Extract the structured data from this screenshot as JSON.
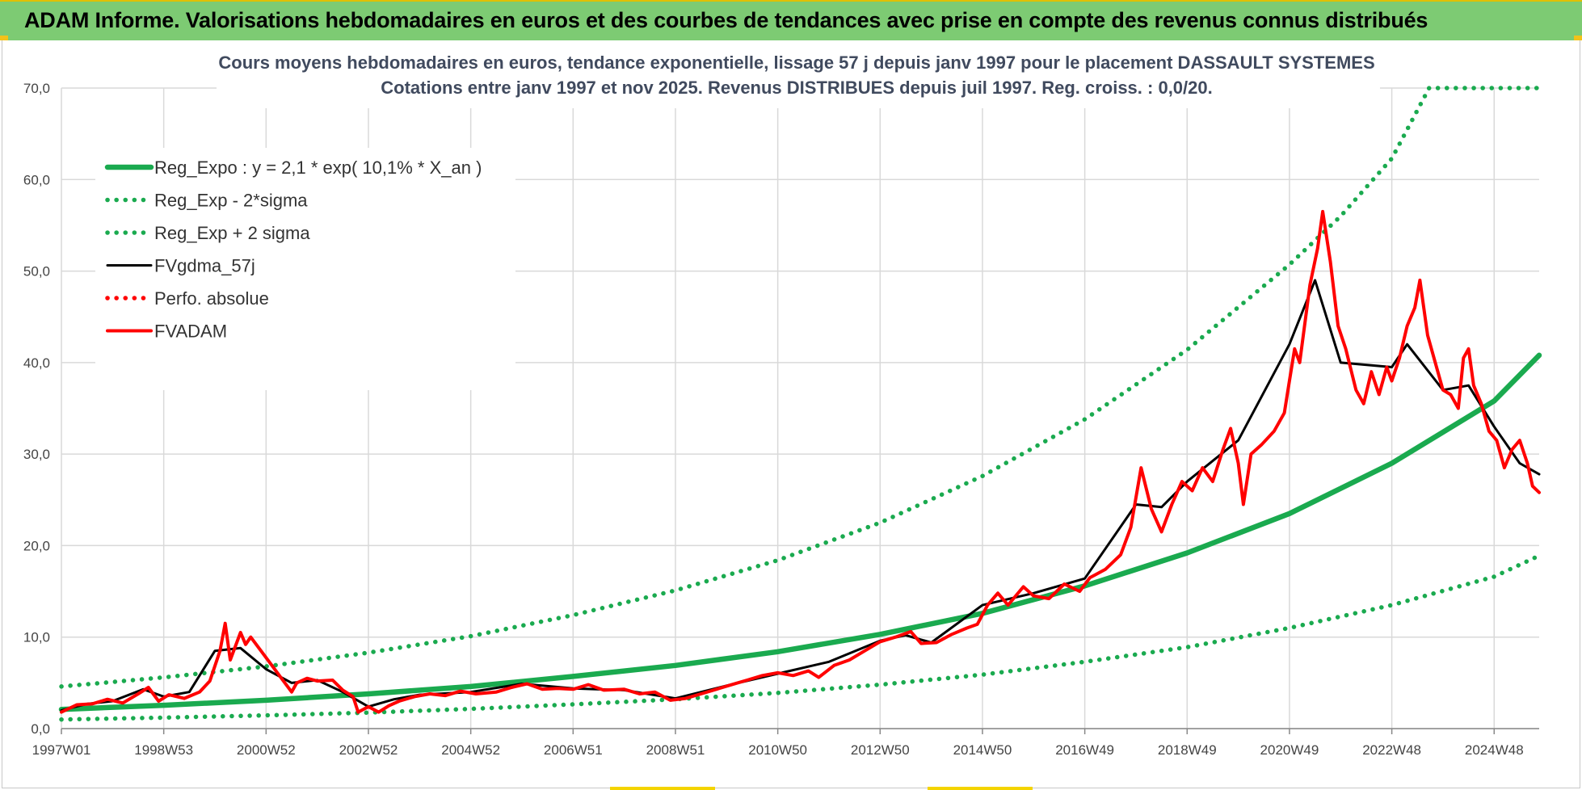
{
  "banner": {
    "title": "ADAM Informe. Valorisations hebdomadaires en euros et des courbes de tendances avec prise en compte des revenus connus distribués"
  },
  "colors": {
    "banner_bg": "#7dcb73",
    "trend_green": "#1aaa4f",
    "fv_red": "#ff0000",
    "gdma_black": "#000000",
    "grid": "#d9d9d9"
  },
  "chart_data": {
    "type": "line",
    "title": [
      "Cours moyens hebdomadaires en euros, tendance exponentielle, lissage 57 j depuis janv 1997  pour le placement DASSAULT SYSTEMES",
      "Cotations entre janv 1997 et nov 2025. Revenus DISTRIBUES depuis juil 1997. Reg. croiss. : 0,0/20."
    ],
    "xlabel": "",
    "ylabel": "",
    "x_range": [
      "1997W01",
      "2025W47"
    ],
    "x_tick_labels": [
      "1997W01",
      "1998W53",
      "2000W52",
      "2002W52",
      "2004W52",
      "2006W51",
      "2008W51",
      "2010W50",
      "2012W50",
      "2014W50",
      "2016W49",
      "2018W49",
      "2020W49",
      "2022W48",
      "2024W48"
    ],
    "x_tick_years": [
      1997.0,
      1999.0,
      2001.0,
      2003.0,
      2005.0,
      2007.0,
      2009.0,
      2011.0,
      2013.0,
      2015.0,
      2017.0,
      2019.0,
      2021.0,
      2023.0,
      2025.0
    ],
    "x_end_year": 2025.88,
    "ylim": [
      0,
      70
    ],
    "y_ticks": [
      0,
      10,
      20,
      30,
      40,
      50,
      60,
      70
    ],
    "y_tick_labels": [
      "0,0",
      "10,0",
      "20,0",
      "30,0",
      "40,0",
      "50,0",
      "60,0",
      "70,0"
    ],
    "grid": true,
    "legend_position": "top-left",
    "series": [
      {
        "name": "Reg_Expo : y = 2,1 * exp( 10,1% *  X_an )",
        "style": "solid-thick",
        "color": "#1aaa4f",
        "points": [
          [
            1997.0,
            2.1
          ],
          [
            1999.0,
            2.55
          ],
          [
            2001.0,
            3.1
          ],
          [
            2003.0,
            3.8
          ],
          [
            2005.0,
            4.6
          ],
          [
            2007.0,
            5.7
          ],
          [
            2009.0,
            6.9
          ],
          [
            2011.0,
            8.4
          ],
          [
            2013.0,
            10.3
          ],
          [
            2015.0,
            12.6
          ],
          [
            2017.0,
            15.6
          ],
          [
            2019.0,
            19.2
          ],
          [
            2021.0,
            23.5
          ],
          [
            2023.0,
            29.0
          ],
          [
            2025.0,
            35.8
          ],
          [
            2025.88,
            40.8
          ]
        ]
      },
      {
        "name": "Reg_Exp - 2*sigma",
        "style": "dotted",
        "color": "#1aaa4f",
        "points": [
          [
            1997.0,
            1.0
          ],
          [
            1999.0,
            1.2
          ],
          [
            2001.0,
            1.45
          ],
          [
            2003.0,
            1.75
          ],
          [
            2005.0,
            2.15
          ],
          [
            2007.0,
            2.65
          ],
          [
            2009.0,
            3.2
          ],
          [
            2011.0,
            3.9
          ],
          [
            2013.0,
            4.8
          ],
          [
            2015.0,
            5.9
          ],
          [
            2017.0,
            7.3
          ],
          [
            2019.0,
            8.9
          ],
          [
            2021.0,
            11.0
          ],
          [
            2023.0,
            13.5
          ],
          [
            2025.0,
            16.6
          ],
          [
            2025.88,
            18.9
          ]
        ]
      },
      {
        "name": "Reg_Exp + 2 sigma",
        "style": "dotted",
        "color": "#1aaa4f",
        "points": [
          [
            1997.0,
            4.6
          ],
          [
            1999.0,
            5.6
          ],
          [
            2001.0,
            6.8
          ],
          [
            2003.0,
            8.3
          ],
          [
            2005.0,
            10.1
          ],
          [
            2007.0,
            12.4
          ],
          [
            2009.0,
            15.1
          ],
          [
            2011.0,
            18.4
          ],
          [
            2013.0,
            22.5
          ],
          [
            2015.0,
            27.6
          ],
          [
            2017.0,
            33.8
          ],
          [
            2019.0,
            41.4
          ],
          [
            2021.0,
            50.7
          ],
          [
            2022.0,
            56.0
          ],
          [
            2023.0,
            62.3
          ],
          [
            2023.73,
            70.0
          ],
          [
            2025.88,
            70.0
          ]
        ]
      },
      {
        "name": "FVgdma_57j",
        "style": "solid",
        "color": "#000000",
        "points": [
          [
            1997.0,
            2.0
          ],
          [
            1997.5,
            2.7
          ],
          [
            1998.0,
            3.0
          ],
          [
            1998.6,
            4.3
          ],
          [
            1999.0,
            3.5
          ],
          [
            1999.5,
            4.0
          ],
          [
            2000.0,
            8.5
          ],
          [
            2000.5,
            8.8
          ],
          [
            2001.0,
            6.5
          ],
          [
            2001.5,
            5.0
          ],
          [
            2002.0,
            5.3
          ],
          [
            2002.5,
            4.0
          ],
          [
            2003.0,
            2.4
          ],
          [
            2003.5,
            3.2
          ],
          [
            2004.0,
            3.7
          ],
          [
            2005.0,
            4.0
          ],
          [
            2006.0,
            4.9
          ],
          [
            2007.0,
            4.4
          ],
          [
            2008.0,
            4.2
          ],
          [
            2009.0,
            3.3
          ],
          [
            2010.0,
            4.7
          ],
          [
            2011.0,
            6.0
          ],
          [
            2012.0,
            7.3
          ],
          [
            2013.0,
            9.6
          ],
          [
            2013.5,
            10.2
          ],
          [
            2014.0,
            9.4
          ],
          [
            2015.0,
            13.5
          ],
          [
            2016.0,
            14.8
          ],
          [
            2017.0,
            16.4
          ],
          [
            2018.0,
            24.5
          ],
          [
            2018.5,
            24.2
          ],
          [
            2019.0,
            27.0
          ],
          [
            2020.0,
            31.5
          ],
          [
            2021.0,
            42.0
          ],
          [
            2021.5,
            49.0
          ],
          [
            2022.0,
            40.0
          ],
          [
            2023.0,
            39.5
          ],
          [
            2023.3,
            42.0
          ],
          [
            2024.0,
            37.0
          ],
          [
            2024.5,
            37.5
          ],
          [
            2025.0,
            33.0
          ],
          [
            2025.5,
            29.0
          ],
          [
            2025.88,
            27.8
          ]
        ]
      },
      {
        "name": "Perfo. absolue",
        "style": "dotted",
        "color": "#ff0000",
        "points": []
      },
      {
        "name": "FVADAM",
        "style": "solid-thick",
        "color": "#ff0000",
        "points": [
          [
            1997.0,
            1.8
          ],
          [
            1997.3,
            2.6
          ],
          [
            1997.6,
            2.7
          ],
          [
            1997.9,
            3.2
          ],
          [
            1998.2,
            2.8
          ],
          [
            1998.5,
            3.8
          ],
          [
            1998.7,
            4.5
          ],
          [
            1998.9,
            3.0
          ],
          [
            1999.1,
            3.7
          ],
          [
            1999.4,
            3.3
          ],
          [
            1999.7,
            4.0
          ],
          [
            1999.9,
            5.2
          ],
          [
            2000.1,
            8.5
          ],
          [
            2000.2,
            11.5
          ],
          [
            2000.3,
            7.5
          ],
          [
            2000.5,
            10.5
          ],
          [
            2000.6,
            9.2
          ],
          [
            2000.7,
            10.0
          ],
          [
            2000.9,
            8.5
          ],
          [
            2001.1,
            7.0
          ],
          [
            2001.3,
            5.5
          ],
          [
            2001.5,
            4.0
          ],
          [
            2001.6,
            5.0
          ],
          [
            2001.8,
            5.5
          ],
          [
            2002.0,
            5.2
          ],
          [
            2002.3,
            5.3
          ],
          [
            2002.5,
            4.2
          ],
          [
            2002.7,
            3.5
          ],
          [
            2002.8,
            1.8
          ],
          [
            2003.0,
            2.4
          ],
          [
            2003.2,
            1.8
          ],
          [
            2003.4,
            2.5
          ],
          [
            2003.6,
            3.0
          ],
          [
            2003.9,
            3.5
          ],
          [
            2004.2,
            3.8
          ],
          [
            2004.5,
            3.6
          ],
          [
            2004.8,
            4.1
          ],
          [
            2005.1,
            3.8
          ],
          [
            2005.5,
            4.0
          ],
          [
            2005.8,
            4.5
          ],
          [
            2006.1,
            4.9
          ],
          [
            2006.4,
            4.3
          ],
          [
            2006.7,
            4.4
          ],
          [
            2007.0,
            4.3
          ],
          [
            2007.3,
            4.8
          ],
          [
            2007.6,
            4.2
          ],
          [
            2008.0,
            4.3
          ],
          [
            2008.3,
            3.8
          ],
          [
            2008.6,
            4.0
          ],
          [
            2008.9,
            3.1
          ],
          [
            2009.2,
            3.3
          ],
          [
            2009.5,
            3.8
          ],
          [
            2009.8,
            4.3
          ],
          [
            2010.1,
            4.8
          ],
          [
            2010.4,
            5.3
          ],
          [
            2010.7,
            5.8
          ],
          [
            2011.0,
            6.1
          ],
          [
            2011.3,
            5.8
          ],
          [
            2011.6,
            6.3
          ],
          [
            2011.8,
            5.6
          ],
          [
            2012.1,
            6.9
          ],
          [
            2012.4,
            7.5
          ],
          [
            2012.7,
            8.5
          ],
          [
            2013.0,
            9.5
          ],
          [
            2013.3,
            10.0
          ],
          [
            2013.6,
            10.6
          ],
          [
            2013.8,
            9.3
          ],
          [
            2014.1,
            9.4
          ],
          [
            2014.4,
            10.3
          ],
          [
            2014.7,
            11.0
          ],
          [
            2014.9,
            11.4
          ],
          [
            2015.1,
            13.5
          ],
          [
            2015.3,
            14.8
          ],
          [
            2015.5,
            13.5
          ],
          [
            2015.8,
            15.5
          ],
          [
            2016.0,
            14.5
          ],
          [
            2016.3,
            14.2
          ],
          [
            2016.6,
            15.8
          ],
          [
            2016.9,
            15.0
          ],
          [
            2017.1,
            16.5
          ],
          [
            2017.4,
            17.4
          ],
          [
            2017.7,
            19.0
          ],
          [
            2017.9,
            22.0
          ],
          [
            2018.1,
            28.5
          ],
          [
            2018.3,
            24.0
          ],
          [
            2018.5,
            21.5
          ],
          [
            2018.7,
            24.5
          ],
          [
            2018.9,
            27.0
          ],
          [
            2019.1,
            26.0
          ],
          [
            2019.3,
            28.5
          ],
          [
            2019.5,
            27.0
          ],
          [
            2019.7,
            30.5
          ],
          [
            2019.85,
            32.8
          ],
          [
            2020.0,
            29.0
          ],
          [
            2020.1,
            24.5
          ],
          [
            2020.25,
            30.0
          ],
          [
            2020.45,
            31.0
          ],
          [
            2020.7,
            32.5
          ],
          [
            2020.9,
            34.5
          ],
          [
            2021.0,
            38.0
          ],
          [
            2021.1,
            41.5
          ],
          [
            2021.2,
            40.0
          ],
          [
            2021.4,
            48.5
          ],
          [
            2021.55,
            52.5
          ],
          [
            2021.65,
            56.5
          ],
          [
            2021.8,
            51.0
          ],
          [
            2021.95,
            44.0
          ],
          [
            2022.1,
            41.5
          ],
          [
            2022.3,
            37.0
          ],
          [
            2022.45,
            35.5
          ],
          [
            2022.6,
            39.0
          ],
          [
            2022.75,
            36.5
          ],
          [
            2022.9,
            39.5
          ],
          [
            2023.0,
            38.0
          ],
          [
            2023.15,
            40.5
          ],
          [
            2023.3,
            44.0
          ],
          [
            2023.45,
            46.0
          ],
          [
            2023.55,
            49.0
          ],
          [
            2023.7,
            43.0
          ],
          [
            2023.85,
            40.0
          ],
          [
            2024.0,
            37.0
          ],
          [
            2024.15,
            36.5
          ],
          [
            2024.3,
            35.0
          ],
          [
            2024.4,
            40.5
          ],
          [
            2024.5,
            41.5
          ],
          [
            2024.6,
            37.5
          ],
          [
            2024.75,
            35.5
          ],
          [
            2024.9,
            32.5
          ],
          [
            2025.05,
            31.5
          ],
          [
            2025.2,
            28.5
          ],
          [
            2025.35,
            30.5
          ],
          [
            2025.5,
            31.5
          ],
          [
            2025.65,
            29.0
          ],
          [
            2025.75,
            26.5
          ],
          [
            2025.88,
            25.8
          ]
        ]
      }
    ]
  }
}
